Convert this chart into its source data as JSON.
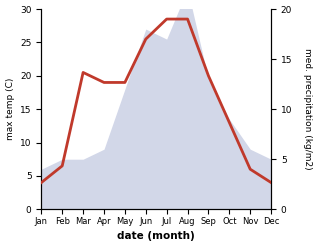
{
  "months": [
    "Jan",
    "Feb",
    "Mar",
    "Apr",
    "May",
    "Jun",
    "Jul",
    "Aug",
    "Sep",
    "Oct",
    "Nov",
    "Dec"
  ],
  "temp": [
    4,
    6.5,
    20.5,
    19.0,
    19.0,
    25.5,
    28.5,
    28.5,
    20.0,
    13.0,
    6.0,
    4.0
  ],
  "precip": [
    4,
    5,
    5,
    6,
    12,
    18,
    17,
    22,
    13,
    9,
    6,
    5
  ],
  "temp_color": "#c0392b",
  "precip_color": "#adb6d6",
  "temp_ylim": [
    0,
    30
  ],
  "precip_ylim": [
    0,
    24
  ],
  "right_ylim": [
    0,
    20
  ],
  "ylabel_left": "max temp (C)",
  "ylabel_right": "med. precipitation (kg/m2)",
  "xlabel": "date (month)",
  "bg_color": "#ffffff",
  "right_yticks": [
    0,
    5,
    10,
    15,
    20
  ],
  "left_yticks": [
    0,
    5,
    10,
    15,
    20,
    25,
    30
  ],
  "temp_linewidth": 2.0,
  "precip_alpha": 0.55,
  "figsize": [
    3.18,
    2.47
  ],
  "dpi": 100
}
